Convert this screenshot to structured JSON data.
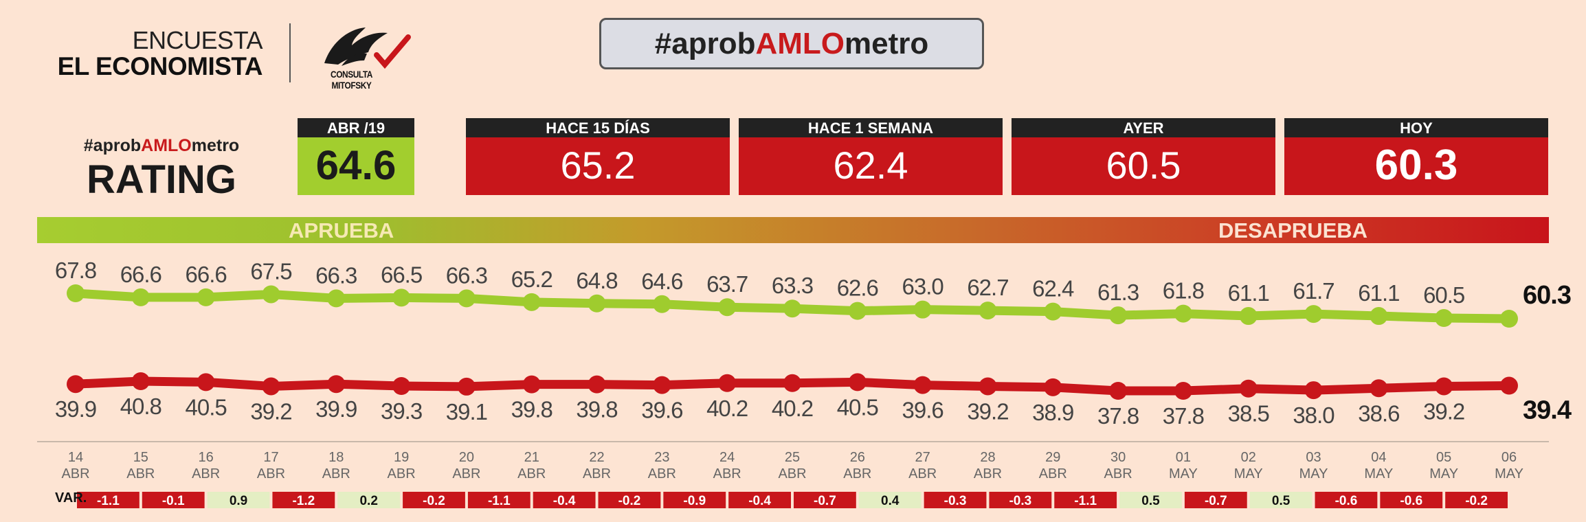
{
  "header": {
    "brand_line1": "ENCUESTA",
    "brand_line2": "EL ECONOMISTA",
    "logo_text": "CONSULTA MITOFSKY",
    "hashtag_pre": "#aprob",
    "hashtag_mid": "AMLO",
    "hashtag_post": "metro"
  },
  "rating": {
    "tag_pre": "#aprob",
    "tag_mid": "AMLO",
    "tag_post": "metro",
    "word": "RATING"
  },
  "stats": [
    {
      "header": "ABR /19",
      "value": "64.6"
    },
    {
      "header": "HACE 15 DÍAS",
      "value": "65.2"
    },
    {
      "header": "HACE 1 SEMANA",
      "value": "62.4"
    },
    {
      "header": "AYER",
      "value": "60.5"
    },
    {
      "header": "HOY",
      "value": "60.3"
    }
  ],
  "bar": {
    "aprueba": "APRUEBA",
    "desaprueba": "DESAPRUEBA"
  },
  "var_label": "VAR.",
  "colors": {
    "approve": "#9fcc2e",
    "disapprove": "#c8161b",
    "background": "#fde4d3",
    "var_positive_bg": "#e4eec3",
    "var_negative_bg": "#c8161b"
  },
  "chart_data": {
    "type": "line",
    "categories": [
      {
        "day": "14",
        "month": "ABR"
      },
      {
        "day": "15",
        "month": "ABR"
      },
      {
        "day": "16",
        "month": "ABR"
      },
      {
        "day": "17",
        "month": "ABR"
      },
      {
        "day": "18",
        "month": "ABR"
      },
      {
        "day": "19",
        "month": "ABR"
      },
      {
        "day": "20",
        "month": "ABR"
      },
      {
        "day": "21",
        "month": "ABR"
      },
      {
        "day": "22",
        "month": "ABR"
      },
      {
        "day": "23",
        "month": "ABR"
      },
      {
        "day": "24",
        "month": "ABR"
      },
      {
        "day": "25",
        "month": "ABR"
      },
      {
        "day": "26",
        "month": "ABR"
      },
      {
        "day": "27",
        "month": "ABR"
      },
      {
        "day": "28",
        "month": "ABR"
      },
      {
        "day": "29",
        "month": "ABR"
      },
      {
        "day": "30",
        "month": "ABR"
      },
      {
        "day": "01",
        "month": "MAY"
      },
      {
        "day": "02",
        "month": "MAY"
      },
      {
        "day": "03",
        "month": "MAY"
      },
      {
        "day": "04",
        "month": "MAY"
      },
      {
        "day": "05",
        "month": "MAY"
      },
      {
        "day": "06",
        "month": "MAY"
      }
    ],
    "series": [
      {
        "name": "APRUEBA",
        "color": "#9fcc2e",
        "values": [
          67.8,
          66.6,
          66.6,
          67.5,
          66.3,
          66.5,
          66.3,
          65.2,
          64.8,
          64.6,
          63.7,
          63.3,
          62.6,
          63.0,
          62.7,
          62.4,
          61.3,
          61.8,
          61.1,
          61.7,
          61.1,
          60.5,
          60.3
        ],
        "labels": [
          "67.8",
          "66.6",
          "66.6",
          "67.5",
          "66.3",
          "66.5",
          "66.3",
          "65.2",
          "64.8",
          "64.6",
          "63.7",
          "63.3",
          "62.6",
          "63.0",
          "62.7",
          "62.4",
          "61.3",
          "61.8",
          "61.1",
          "61.7",
          "61.1",
          "60.5",
          "60.3"
        ]
      },
      {
        "name": "DESAPRUEBA",
        "color": "#c8161b",
        "values": [
          39.9,
          40.8,
          40.5,
          39.2,
          39.9,
          39.3,
          39.1,
          39.8,
          39.8,
          39.6,
          40.2,
          40.2,
          40.5,
          39.6,
          39.2,
          38.9,
          37.8,
          37.8,
          38.5,
          38.0,
          38.6,
          39.2,
          39.4
        ],
        "labels": [
          "39.9",
          "40.8",
          "40.5",
          "39.2",
          "39.9",
          "39.3",
          "39.1",
          "39.8",
          "39.8",
          "39.6",
          "40.2",
          "40.2",
          "40.5",
          "39.6",
          "39.2",
          "38.9",
          "37.8",
          "37.8",
          "38.5",
          "38.0",
          "38.6",
          "39.2",
          "39.4"
        ]
      }
    ],
    "variation": [
      "-1.1",
      "-0.1",
      "0.9",
      "-1.2",
      "0.2",
      "-0.2",
      "-1.1",
      "-0.4",
      "-0.2",
      "-0.9",
      "-0.4",
      "-0.7",
      "0.4",
      "-0.3",
      "-0.3",
      "-1.1",
      "0.5",
      "-0.7",
      "0.5",
      "-0.6",
      "-0.6",
      "-0.2"
    ],
    "grid": false
  }
}
